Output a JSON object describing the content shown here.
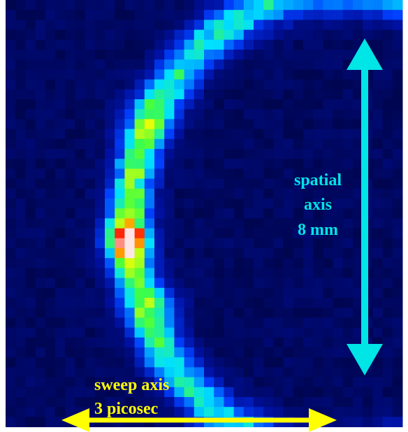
{
  "annotations": {
    "spatial": [
      "spatial",
      "axis",
      "8 mm"
    ],
    "sweep": [
      "sweep axis",
      "3 picosec"
    ]
  }
}
